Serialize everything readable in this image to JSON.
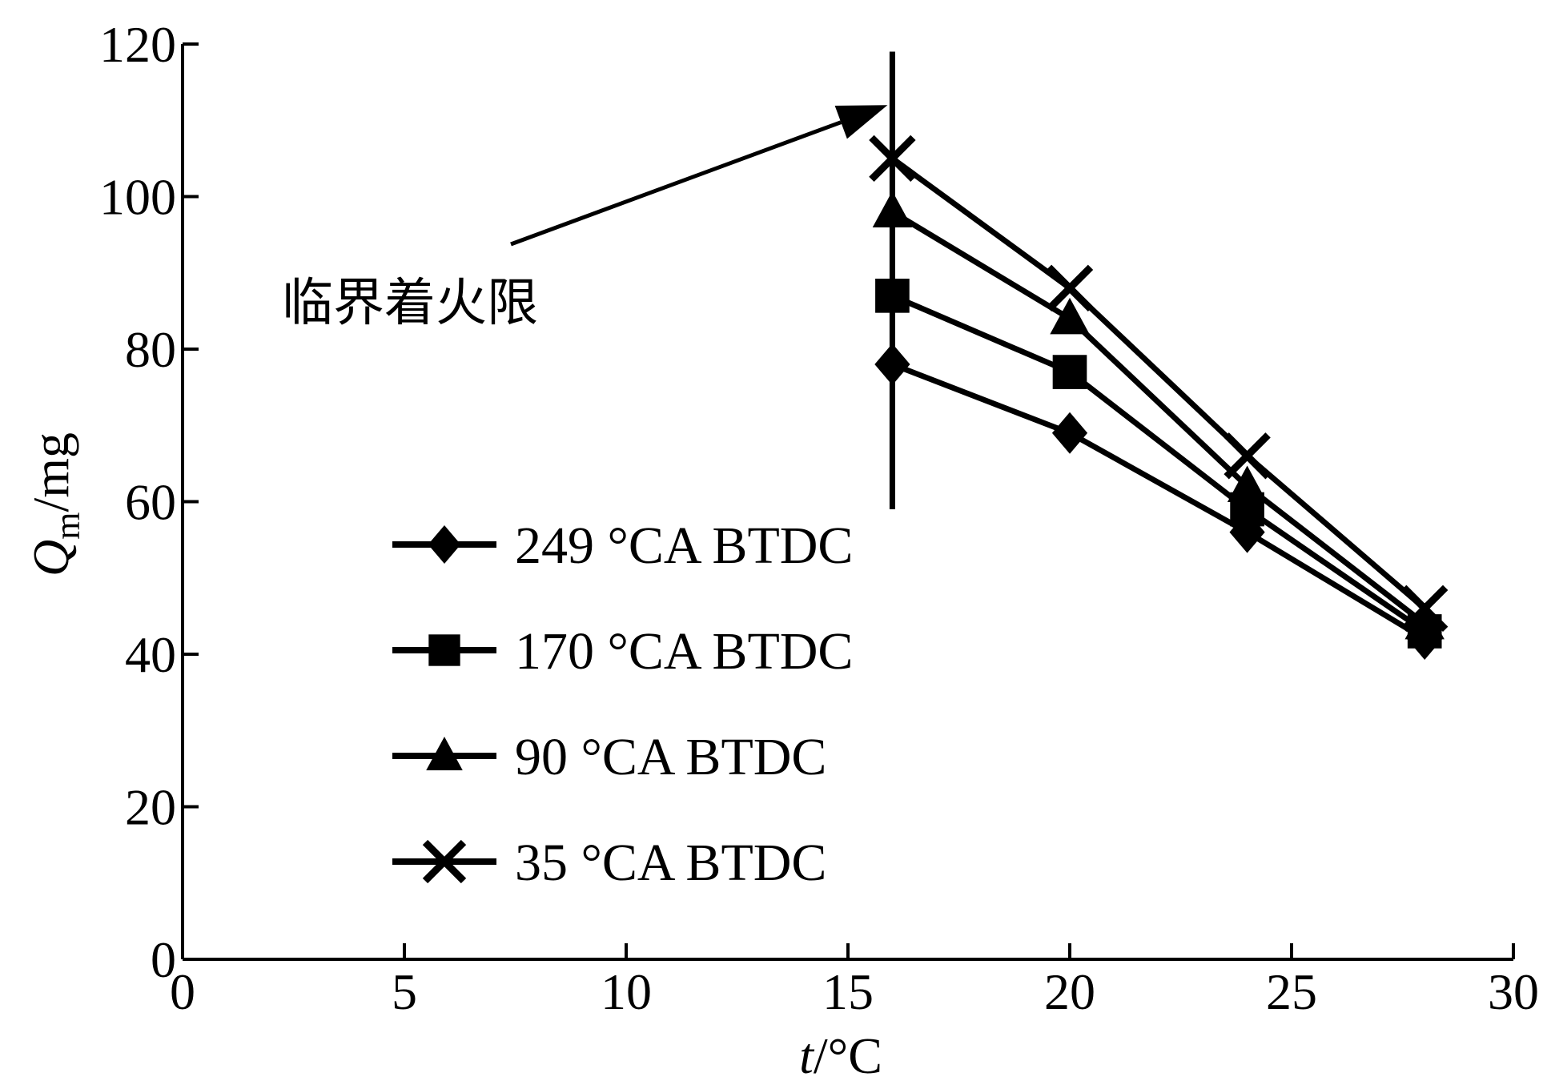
{
  "chart_data": {
    "type": "line",
    "xlabel": {
      "italic": "t",
      "rest": "/°C"
    },
    "ylabel": {
      "italic": "Q",
      "sub": "m",
      "rest": "/mg"
    },
    "xlim": [
      0,
      30
    ],
    "ylim": [
      0,
      120
    ],
    "x_ticks": [
      0,
      5,
      10,
      15,
      20,
      25,
      30
    ],
    "y_ticks": [
      0,
      20,
      40,
      60,
      80,
      100,
      120
    ],
    "grid": false,
    "legend_position": "lower-left",
    "series": [
      {
        "name": "249 °CA BTDC",
        "marker": "diamond",
        "x": [
          16,
          20,
          24,
          28
        ],
        "y": [
          78,
          69,
          56,
          42
        ]
      },
      {
        "name": "170 °CA BTDC",
        "marker": "square",
        "x": [
          16,
          20,
          24,
          28
        ],
        "y": [
          87,
          77,
          59,
          43
        ]
      },
      {
        "name": "90 °CA BTDC",
        "marker": "triangle",
        "x": [
          16,
          20,
          24,
          28
        ],
        "y": [
          98,
          84,
          62,
          44
        ]
      },
      {
        "name": "35 °CA BTDC",
        "marker": "x",
        "x": [
          16,
          20,
          24,
          28
        ],
        "y": [
          105,
          88,
          66,
          46
        ]
      }
    ],
    "critical_line": {
      "x": 16,
      "y_range": [
        59,
        119
      ]
    },
    "annotation": {
      "text": "临界着火限",
      "arrow_to": [
        16,
        112
      ]
    }
  }
}
